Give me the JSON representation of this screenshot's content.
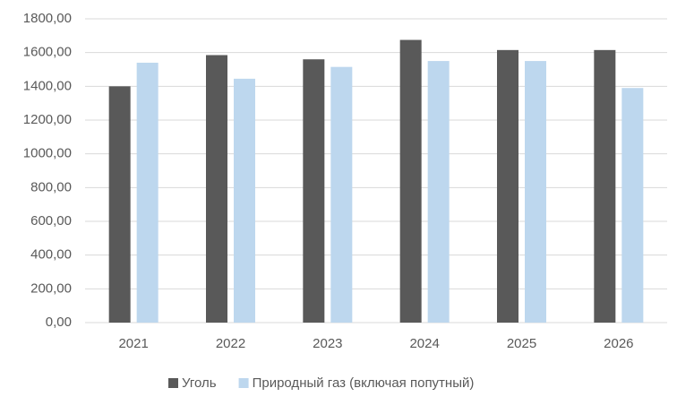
{
  "chart_data": {
    "type": "bar",
    "categories": [
      "2021",
      "2022",
      "2023",
      "2024",
      "2025",
      "2026"
    ],
    "series": [
      {
        "name": "Уголь",
        "color": "#595959",
        "values": [
          1400,
          1585,
          1560,
          1675,
          1615,
          1615
        ]
      },
      {
        "name": "Природный газ (включая попутный)",
        "color": "#bdd7ee",
        "values": [
          1540,
          1445,
          1515,
          1550,
          1550,
          1390
        ]
      }
    ],
    "ylim": [
      0,
      1800
    ],
    "yticks": [
      {
        "value": 0,
        "label": "0,00"
      },
      {
        "value": 200,
        "label": "200,00"
      },
      {
        "value": 400,
        "label": "400,00"
      },
      {
        "value": 600,
        "label": "600,00"
      },
      {
        "value": 800,
        "label": "800,00"
      },
      {
        "value": 1000,
        "label": "1000,00"
      },
      {
        "value": 1200,
        "label": "1200,00"
      },
      {
        "value": 1400,
        "label": "1400,00"
      },
      {
        "value": 1600,
        "label": "1600,00"
      },
      {
        "value": 1800,
        "label": "1800,00"
      }
    ],
    "grid": true,
    "legend": "bottom"
  }
}
